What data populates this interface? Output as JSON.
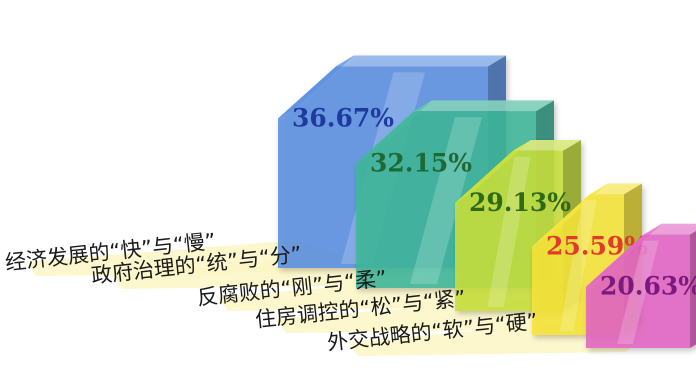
{
  "chart_data": {
    "type": "bar",
    "categories": [
      "经济发展的“快”与“慢”",
      "政府治理的“统”与“分”",
      "反腐败的“刚”与“柔”",
      "住房调控的“松”与“紧”",
      "外交战略的“软”与“硬”"
    ],
    "values": [
      36.67,
      32.15,
      29.13,
      25.59,
      20.63
    ],
    "value_labels": [
      "36.67%",
      "32.15%",
      "29.13%",
      "25.59%",
      "20.63%"
    ],
    "unit": "%",
    "colors": [
      "#5b8fe0",
      "#3fb79a",
      "#c7df3c",
      "#f5e43a",
      "#e365c4"
    ],
    "label_colors": [
      "#1f3a9e",
      "#1f6a34",
      "#2f6a16",
      "#e23a2c",
      "#7a1a7e"
    ],
    "ribbon_color": "#fbf6c4",
    "title": "",
    "xlabel": "",
    "ylabel": "",
    "grid": false,
    "legend": "none"
  }
}
